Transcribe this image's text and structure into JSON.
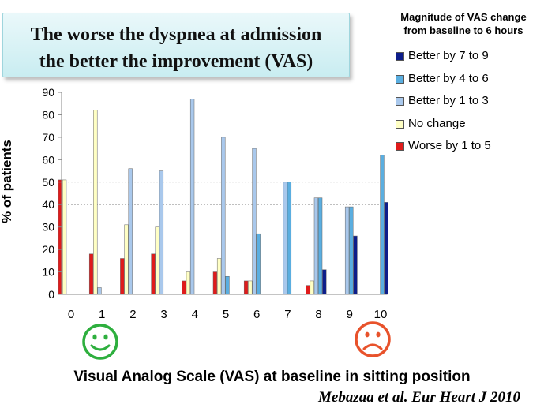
{
  "title_lines": [
    "The worse the dyspnea at admission",
    "the better the improvement  (VAS)"
  ],
  "legend_title": [
    "Magnitude of VAS change",
    "from baseline to 6 hours"
  ],
  "citation": "Mebazaa et al. Eur Heart J 2010",
  "icons": {
    "happy": "smiley-face-icon",
    "sad": "frowning-face-icon",
    "happy_color": "#2eaf3e",
    "sad_color": "#e8522b"
  },
  "chart_data": {
    "type": "bar",
    "xlabel": "Visual Analog Scale (VAS) at baseline in sitting position",
    "ylabel": "% of patients",
    "ylim": [
      0,
      90
    ],
    "yticks": [
      0,
      10,
      20,
      30,
      40,
      50,
      60,
      70,
      80,
      90
    ],
    "grid_lines": [
      40,
      50
    ],
    "legend_position": "top-right",
    "categories": [
      "0",
      "1",
      "2",
      "3",
      "4",
      "5",
      "6",
      "7",
      "8",
      "9",
      "10"
    ],
    "series": [
      {
        "name": "Worse by 1 to 5",
        "color": "#e01b1b",
        "values": [
          51,
          18,
          16,
          18,
          6,
          10,
          6,
          0,
          4,
          0,
          0
        ]
      },
      {
        "name": "No change",
        "color": "#ffffc4",
        "values": [
          51,
          82,
          31,
          30,
          10,
          16,
          6,
          0,
          6,
          0,
          0
        ]
      },
      {
        "name": "Better by 1 to 3",
        "color": "#a9c8ec",
        "values": [
          0,
          3,
          56,
          55,
          87,
          70,
          65,
          50,
          43,
          39,
          0
        ]
      },
      {
        "name": "Better by 4 to 6",
        "color": "#5aaee0",
        "values": [
          0,
          0,
          0,
          0,
          0,
          8,
          27,
          50,
          43,
          39,
          62
        ]
      },
      {
        "name": "Better by 7 to 9",
        "color": "#0d1d8a",
        "values": [
          0,
          0,
          0,
          0,
          0,
          0,
          0,
          0,
          11,
          26,
          41
        ]
      }
    ]
  }
}
